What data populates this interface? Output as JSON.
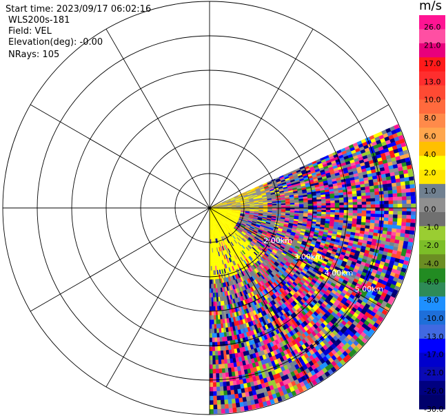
{
  "header": {
    "start_time": "Start time: 2023/09/17 06:02:16",
    "radar": "WLS200s-181",
    "field": "Field: VEL",
    "elevation": "Elevation(deg): -0.00",
    "nrays": "NRays: 105"
  },
  "chart_data": {
    "type": "heatmap",
    "subtype": "ppi-polar",
    "field": "VEL",
    "unit": "m/s",
    "num_rays": 105,
    "azimuth_sector_deg": [
      66,
      180
    ],
    "max_range_km": 6,
    "ring_spacing_km": 1,
    "spoke_step_deg": 30,
    "range_labels": [
      {
        "text": "2.00km",
        "range_km": 2
      },
      {
        "text": "3.00km",
        "range_km": 3
      },
      {
        "text": "4.00km",
        "range_km": 4
      },
      {
        "text": "5.00km",
        "range_km": 5
      }
    ],
    "colorbar": {
      "ticks": [
        "26.0",
        "21.0",
        "17.0",
        "13.0",
        "10.0",
        "8.0",
        "6.0",
        "4.0",
        "2.0",
        "1.0",
        "0.0",
        "-1.0",
        "-2.0",
        "-4.0",
        "-6.0",
        "-8.0",
        "-10.0",
        "-13.0",
        "-17.0",
        "-21.0",
        "-26.0",
        "-30.0"
      ],
      "colors": [
        "#ff1493",
        "#ff4fa3",
        "#e8007c",
        "#ff1a1a",
        "#ff2e2e",
        "#ff4a33",
        "#ff6a3d",
        "#ff8a4a",
        "#ffa64d",
        "#ffc000",
        "#ffff00",
        "#ffe600",
        "#708090",
        "#909090",
        "#707070",
        "#9acd32",
        "#7cbe28",
        "#6b8e23",
        "#228b22",
        "#2e8b57",
        "#1e90ff",
        "#1e6fd9",
        "#4169e1",
        "#0000ff",
        "#0000cd",
        "#0a0ab4",
        "#000080",
        "#00006b"
      ]
    }
  }
}
